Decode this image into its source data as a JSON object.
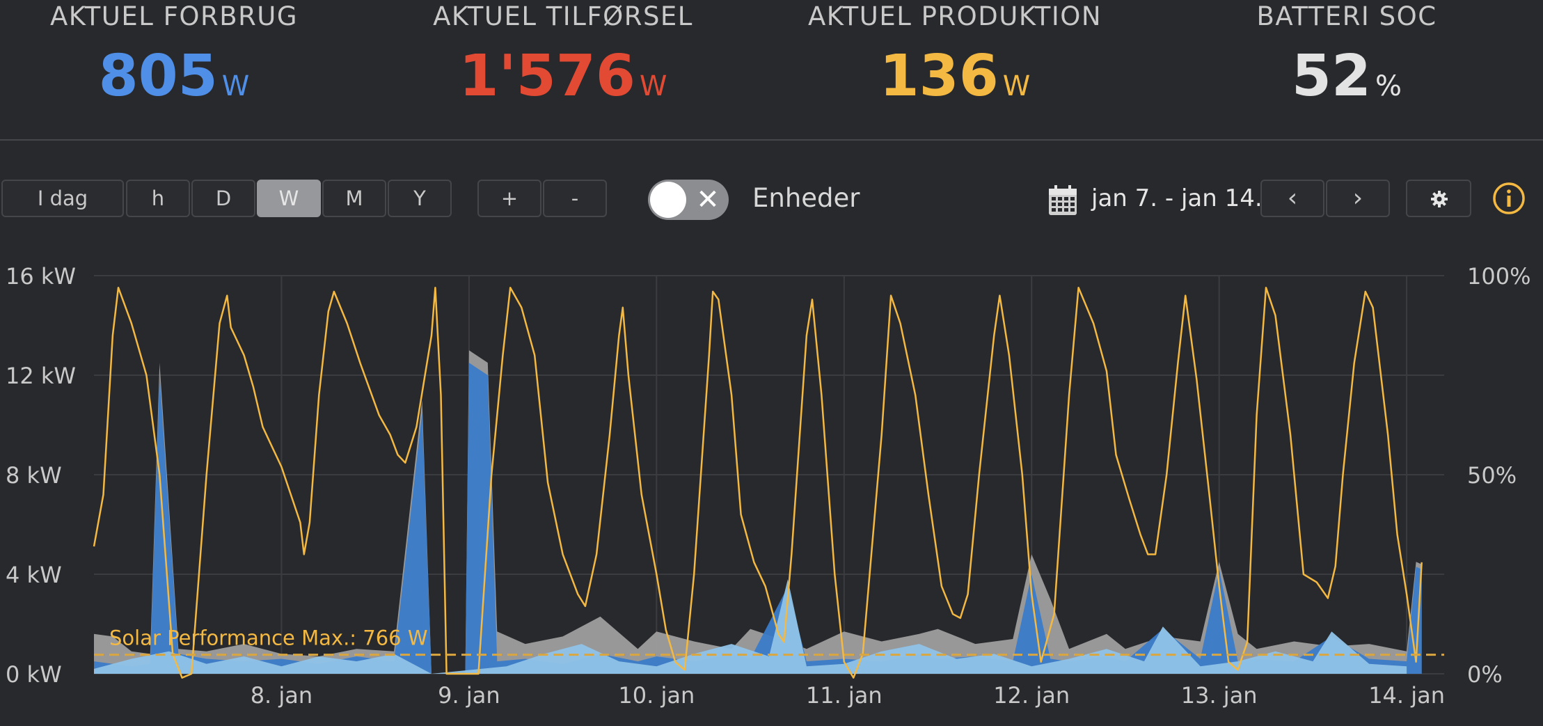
{
  "kpis": {
    "consumption": {
      "label": "AKTUEL FORBRUG",
      "value": "805",
      "unit": "W",
      "color": "#4f8fe8"
    },
    "feed": {
      "label": "AKTUEL TILFØRSEL",
      "value": "1'576",
      "unit": "W",
      "color": "#e34a33"
    },
    "production": {
      "label": "AKTUEL PRODUKTION",
      "value": "136",
      "unit": "W",
      "color": "#f4b942"
    },
    "battery": {
      "label": "BATTERI SOC",
      "value": "52",
      "unit": "%",
      "color": "#e3e3e3"
    }
  },
  "toolbar": {
    "today_label": "I dag",
    "periods": [
      "h",
      "D",
      "W",
      "M",
      "Y"
    ],
    "active_period": "W",
    "zoom_in": "+",
    "zoom_out": "-",
    "units_toggle_label": "Enheder",
    "date_range": "jan 7. - jan 14.",
    "prev": "‹",
    "next": "›"
  },
  "icons": {
    "calendar": "calendar-icon",
    "settings": "gear-icon",
    "info": "info-icon",
    "toggle": "close-icon",
    "accent": "#f4b942"
  },
  "chart_data": {
    "type": "area",
    "y_left": {
      "unit": "kW",
      "ticks": [
        "16 kW",
        "12 kW",
        "8 kW",
        "4 kW",
        "0 kW"
      ],
      "range": [
        0,
        16
      ]
    },
    "y_right": {
      "unit": "%",
      "ticks": [
        "100%",
        "50%",
        "0%"
      ],
      "range": [
        0,
        100
      ]
    },
    "x_ticks": [
      "8. jan",
      "9. jan",
      "10. jan",
      "11. jan",
      "12. jan",
      "13. jan",
      "14. jan"
    ],
    "x_range_days": [
      7.0,
      14.2
    ],
    "grid": true,
    "annotation": {
      "label": "Solar Performance Max.: 766 W",
      "value_kw": 0.766
    },
    "series": [
      {
        "key": "grid_import",
        "color": "#9e9e9e",
        "points": [
          [
            7.0,
            1.6
          ],
          [
            7.1,
            1.5
          ],
          [
            7.2,
            0.9
          ],
          [
            7.3,
            0.8
          ],
          [
            7.35,
            12.5
          ],
          [
            7.45,
            1.0
          ],
          [
            7.6,
            0.9
          ],
          [
            7.8,
            1.2
          ],
          [
            8.0,
            0.8
          ],
          [
            8.2,
            0.7
          ],
          [
            8.4,
            1.0
          ],
          [
            8.6,
            0.9
          ],
          [
            8.75,
            11.0
          ],
          [
            8.8,
            0.0
          ],
          [
            8.98,
            0.0
          ],
          [
            9.0,
            13.0
          ],
          [
            9.1,
            12.5
          ],
          [
            9.15,
            1.7
          ],
          [
            9.3,
            1.2
          ],
          [
            9.5,
            1.5
          ],
          [
            9.7,
            2.3
          ],
          [
            9.9,
            1.0
          ],
          [
            10.0,
            1.7
          ],
          [
            10.2,
            1.3
          ],
          [
            10.4,
            1.0
          ],
          [
            10.5,
            1.8
          ],
          [
            10.7,
            1.3
          ],
          [
            10.8,
            1.0
          ],
          [
            11.0,
            1.7
          ],
          [
            11.2,
            1.3
          ],
          [
            11.4,
            1.6
          ],
          [
            11.5,
            1.8
          ],
          [
            11.7,
            1.2
          ],
          [
            11.9,
            1.4
          ],
          [
            12.0,
            4.8
          ],
          [
            12.1,
            3.0
          ],
          [
            12.2,
            1.0
          ],
          [
            12.4,
            1.6
          ],
          [
            12.5,
            1.0
          ],
          [
            12.7,
            1.5
          ],
          [
            12.9,
            1.3
          ],
          [
            13.0,
            4.5
          ],
          [
            13.1,
            1.6
          ],
          [
            13.2,
            1.0
          ],
          [
            13.4,
            1.3
          ],
          [
            13.6,
            1.1
          ],
          [
            13.8,
            1.2
          ],
          [
            14.0,
            0.9
          ],
          [
            14.05,
            4.5
          ],
          [
            14.08,
            4.4
          ]
        ]
      },
      {
        "key": "consumption",
        "color": "#3a7bc8",
        "points": [
          [
            7.0,
            0.5
          ],
          [
            7.2,
            0.3
          ],
          [
            7.3,
            0.4
          ],
          [
            7.35,
            12.0
          ],
          [
            7.45,
            0.8
          ],
          [
            7.6,
            0.6
          ],
          [
            7.8,
            0.5
          ],
          [
            8.0,
            0.6
          ],
          [
            8.2,
            0.4
          ],
          [
            8.4,
            0.7
          ],
          [
            8.6,
            0.5
          ],
          [
            8.75,
            10.5
          ],
          [
            8.8,
            0.0
          ],
          [
            8.98,
            0.0
          ],
          [
            9.0,
            12.5
          ],
          [
            9.1,
            12.0
          ],
          [
            9.15,
            0.5
          ],
          [
            9.3,
            0.6
          ],
          [
            9.5,
            0.4
          ],
          [
            9.7,
            0.8
          ],
          [
            9.9,
            0.5
          ],
          [
            10.0,
            0.7
          ],
          [
            10.2,
            0.5
          ],
          [
            10.4,
            0.8
          ],
          [
            10.5,
            0.6
          ],
          [
            10.7,
            3.5
          ],
          [
            10.8,
            0.5
          ],
          [
            11.0,
            0.6
          ],
          [
            11.2,
            0.5
          ],
          [
            11.4,
            0.8
          ],
          [
            11.5,
            0.6
          ],
          [
            11.7,
            0.7
          ],
          [
            11.9,
            0.5
          ],
          [
            12.0,
            4.0
          ],
          [
            12.1,
            0.6
          ],
          [
            12.2,
            0.5
          ],
          [
            12.4,
            0.7
          ],
          [
            12.5,
            0.5
          ],
          [
            12.7,
            1.8
          ],
          [
            12.9,
            0.6
          ],
          [
            13.0,
            4.2
          ],
          [
            13.1,
            0.5
          ],
          [
            13.2,
            0.6
          ],
          [
            13.4,
            0.5
          ],
          [
            13.6,
            1.5
          ],
          [
            13.8,
            0.6
          ],
          [
            14.0,
            0.5
          ],
          [
            14.05,
            4.3
          ],
          [
            14.08,
            4.2
          ]
        ]
      },
      {
        "key": "production",
        "color": "#8fc3e8",
        "points": [
          [
            7.0,
            0.2
          ],
          [
            7.2,
            0.6
          ],
          [
            7.4,
            0.9
          ],
          [
            7.6,
            0.4
          ],
          [
            7.8,
            0.7
          ],
          [
            8.0,
            0.3
          ],
          [
            8.2,
            0.7
          ],
          [
            8.4,
            0.5
          ],
          [
            8.6,
            0.8
          ],
          [
            8.8,
            0.0
          ],
          [
            9.2,
            0.3
          ],
          [
            9.4,
            0.8
          ],
          [
            9.6,
            1.2
          ],
          [
            9.8,
            0.5
          ],
          [
            10.0,
            0.3
          ],
          [
            10.2,
            0.8
          ],
          [
            10.4,
            1.2
          ],
          [
            10.6,
            0.7
          ],
          [
            10.7,
            3.8
          ],
          [
            10.8,
            0.3
          ],
          [
            11.0,
            0.4
          ],
          [
            11.2,
            0.9
          ],
          [
            11.4,
            1.2
          ],
          [
            11.6,
            0.6
          ],
          [
            11.8,
            0.8
          ],
          [
            12.0,
            0.3
          ],
          [
            12.2,
            0.6
          ],
          [
            12.4,
            1.0
          ],
          [
            12.6,
            0.5
          ],
          [
            12.7,
            1.9
          ],
          [
            12.9,
            0.3
          ],
          [
            13.1,
            0.5
          ],
          [
            13.3,
            0.9
          ],
          [
            13.5,
            0.5
          ],
          [
            13.6,
            1.7
          ],
          [
            13.8,
            0.4
          ],
          [
            14.0,
            0.3
          ]
        ]
      },
      {
        "key": "battery_soc",
        "color": "#f4b942",
        "axis": "right",
        "points": [
          [
            7.0,
            32
          ],
          [
            7.05,
            45
          ],
          [
            7.1,
            85
          ],
          [
            7.13,
            97
          ],
          [
            7.2,
            88
          ],
          [
            7.28,
            75
          ],
          [
            7.35,
            50
          ],
          [
            7.42,
            5
          ],
          [
            7.47,
            -1
          ],
          [
            7.52,
            0
          ],
          [
            7.6,
            50
          ],
          [
            7.67,
            88
          ],
          [
            7.71,
            95
          ],
          [
            7.73,
            87
          ],
          [
            7.8,
            80
          ],
          [
            7.85,
            72
          ],
          [
            7.9,
            62
          ],
          [
            8.0,
            52
          ],
          [
            8.05,
            45
          ],
          [
            8.1,
            38
          ],
          [
            8.12,
            30
          ],
          [
            8.15,
            38
          ],
          [
            8.2,
            70
          ],
          [
            8.25,
            91
          ],
          [
            8.28,
            96
          ],
          [
            8.35,
            88
          ],
          [
            8.42,
            78
          ],
          [
            8.52,
            65
          ],
          [
            8.58,
            60
          ],
          [
            8.62,
            55
          ],
          [
            8.66,
            53
          ],
          [
            8.72,
            62
          ],
          [
            8.8,
            85
          ],
          [
            8.82,
            97
          ],
          [
            8.85,
            70
          ],
          [
            8.88,
            0
          ],
          [
            9.05,
            0
          ],
          [
            9.12,
            50
          ],
          [
            9.18,
            80
          ],
          [
            9.22,
            97
          ],
          [
            9.28,
            92
          ],
          [
            9.35,
            80
          ],
          [
            9.42,
            48
          ],
          [
            9.5,
            30
          ],
          [
            9.58,
            20
          ],
          [
            9.62,
            17
          ],
          [
            9.68,
            30
          ],
          [
            9.75,
            60
          ],
          [
            9.8,
            85
          ],
          [
            9.82,
            92
          ],
          [
            9.85,
            75
          ],
          [
            9.92,
            45
          ],
          [
            10.0,
            25
          ],
          [
            10.05,
            11
          ],
          [
            10.1,
            3
          ],
          [
            10.15,
            1
          ],
          [
            10.2,
            25
          ],
          [
            10.28,
            80
          ],
          [
            10.3,
            96
          ],
          [
            10.33,
            94
          ],
          [
            10.4,
            70
          ],
          [
            10.45,
            40
          ],
          [
            10.52,
            28
          ],
          [
            10.58,
            22
          ],
          [
            10.65,
            10
          ],
          [
            10.68,
            8
          ],
          [
            10.72,
            30
          ],
          [
            10.8,
            85
          ],
          [
            10.83,
            94
          ],
          [
            10.88,
            70
          ],
          [
            10.95,
            25
          ],
          [
            11.0,
            3
          ],
          [
            11.05,
            -1
          ],
          [
            11.1,
            5
          ],
          [
            11.2,
            60
          ],
          [
            11.25,
            95
          ],
          [
            11.3,
            88
          ],
          [
            11.38,
            70
          ],
          [
            11.45,
            45
          ],
          [
            11.52,
            22
          ],
          [
            11.58,
            15
          ],
          [
            11.62,
            14
          ],
          [
            11.66,
            20
          ],
          [
            11.72,
            50
          ],
          [
            11.8,
            85
          ],
          [
            11.83,
            95
          ],
          [
            11.88,
            80
          ],
          [
            11.95,
            50
          ],
          [
            12.0,
            20
          ],
          [
            12.05,
            3
          ],
          [
            12.12,
            15
          ],
          [
            12.2,
            70
          ],
          [
            12.25,
            97
          ],
          [
            12.33,
            88
          ],
          [
            12.4,
            76
          ],
          [
            12.45,
            55
          ],
          [
            12.52,
            44
          ],
          [
            12.58,
            35
          ],
          [
            12.62,
            30
          ],
          [
            12.66,
            30
          ],
          [
            12.72,
            50
          ],
          [
            12.78,
            78
          ],
          [
            12.82,
            95
          ],
          [
            12.88,
            74
          ],
          [
            12.95,
            44
          ],
          [
            13.0,
            22
          ],
          [
            13.05,
            3
          ],
          [
            13.1,
            1
          ],
          [
            13.15,
            8
          ],
          [
            13.2,
            65
          ],
          [
            13.25,
            97
          ],
          [
            13.3,
            90
          ],
          [
            13.38,
            60
          ],
          [
            13.45,
            25
          ],
          [
            13.52,
            23
          ],
          [
            13.58,
            19
          ],
          [
            13.62,
            27
          ],
          [
            13.66,
            50
          ],
          [
            13.72,
            78
          ],
          [
            13.78,
            96
          ],
          [
            13.82,
            92
          ],
          [
            13.9,
            60
          ],
          [
            13.95,
            35
          ],
          [
            14.0,
            20
          ],
          [
            14.05,
            3
          ],
          [
            14.08,
            28
          ]
        ]
      }
    ]
  }
}
